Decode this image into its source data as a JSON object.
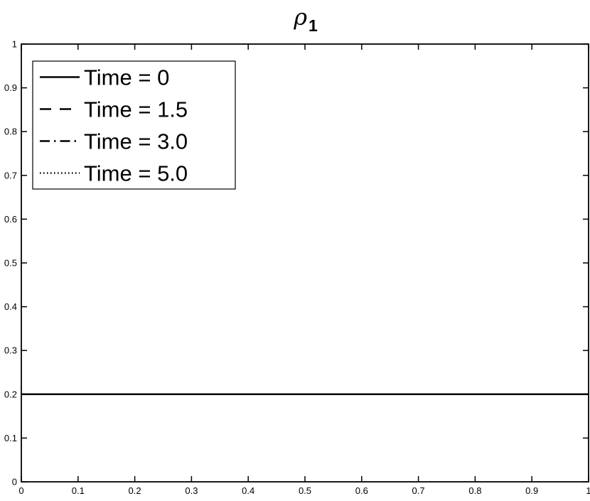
{
  "chart_data": {
    "type": "line",
    "title": {
      "symbol": "ρ",
      "subscript": "1"
    },
    "xlabel": "",
    "ylabel": "",
    "xlim": [
      0,
      1
    ],
    "ylim": [
      0,
      1
    ],
    "x_ticks": [
      0,
      0.1,
      0.2,
      0.3,
      0.4,
      0.5,
      0.6,
      0.7,
      0.8,
      0.9,
      1
    ],
    "x_tick_labels": [
      "0",
      "0.1",
      "0.2",
      "0.3",
      "0.4",
      "0.5",
      "0.6",
      "0.7",
      "0.8",
      "0.9",
      "1"
    ],
    "y_ticks": [
      0,
      0.1,
      0.2,
      0.3,
      0.4,
      0.5,
      0.6,
      0.7,
      0.8,
      0.9,
      1
    ],
    "y_tick_labels": [
      "0",
      "0.1",
      "0.2",
      "0.3",
      "0.4",
      "0.5",
      "0.6",
      "0.7",
      "0.8",
      "0.9",
      "1"
    ],
    "grid": false,
    "legend_position": "top-left",
    "series": [
      {
        "name": "Time = 0",
        "style": "solid",
        "x": [
          0,
          1
        ],
        "y": [
          0.2,
          0.2
        ]
      },
      {
        "name": "Time = 1.5",
        "style": "dashed",
        "x": [
          0,
          1
        ],
        "y": [
          0.2,
          0.2
        ]
      },
      {
        "name": "Time = 3.0",
        "style": "dashdot",
        "x": [
          0,
          1
        ],
        "y": [
          0.2,
          0.2
        ]
      },
      {
        "name": "Time = 5.0",
        "style": "dotted",
        "x": [
          0,
          1
        ],
        "y": [
          0.2,
          0.2
        ]
      }
    ],
    "colors": {
      "line": "#000000",
      "axis": "#000000",
      "background": "#ffffff",
      "legend_border": "#000000"
    }
  }
}
